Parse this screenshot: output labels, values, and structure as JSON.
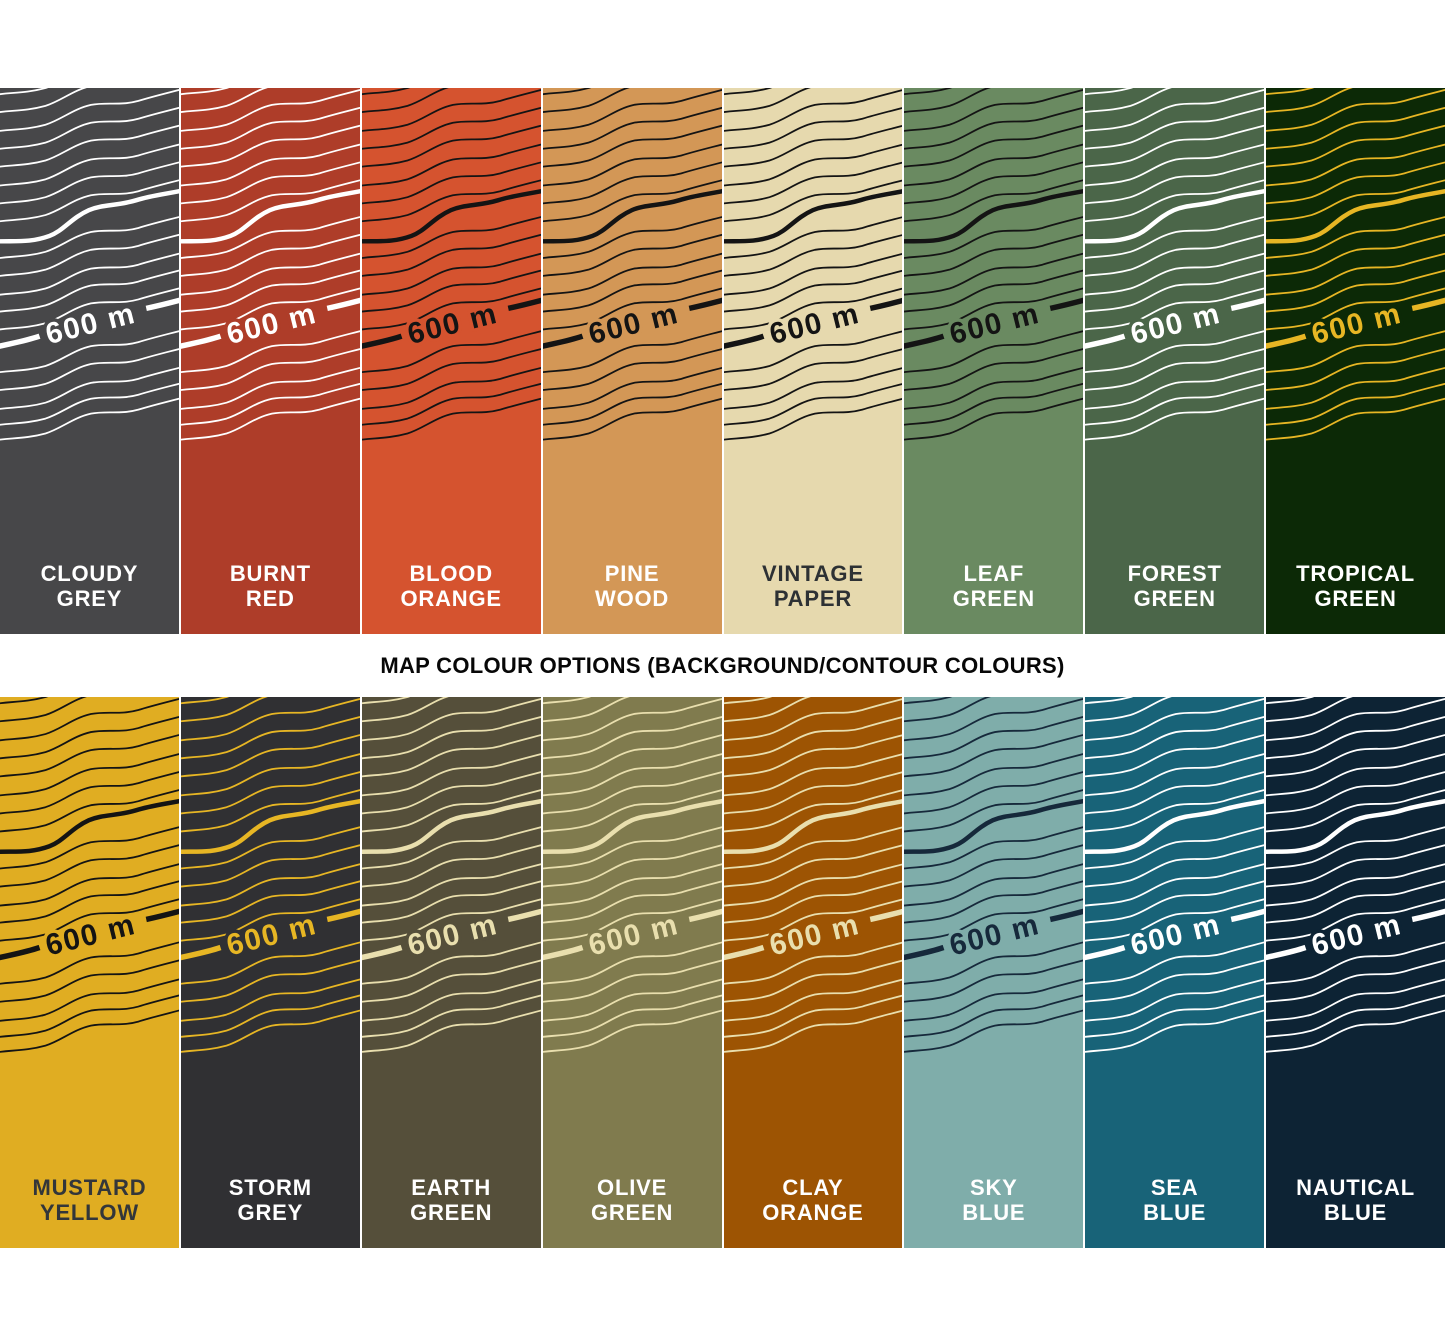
{
  "title": "MAP COLOUR OPTIONS (BACKGROUND/CONTOUR COLOURS)",
  "contour_label": "600 m",
  "rows": [
    {
      "swatches": [
        {
          "name": "CLOUDY\nGREY",
          "bg": "#474749",
          "contour": "#ffffff",
          "label_color": "#ffffff"
        },
        {
          "name": "BURNT\nRED",
          "bg": "#ae3d29",
          "contour": "#ffffff",
          "label_color": "#ffffff"
        },
        {
          "name": "BLOOD\nORANGE",
          "bg": "#d5532f",
          "contour": "#141414",
          "label_color": "#ffffff"
        },
        {
          "name": "PINE\nWOOD",
          "bg": "#d39756",
          "contour": "#141414",
          "label_color": "#ffffff"
        },
        {
          "name": "VINTAGE\nPAPER",
          "bg": "#e6d9ae",
          "contour": "#141414",
          "label_color": "#2d3134"
        },
        {
          "name": "LEAF\nGREEN",
          "bg": "#6a8a61",
          "contour": "#141414",
          "label_color": "#ffffff"
        },
        {
          "name": "FOREST\nGREEN",
          "bg": "#4b6649",
          "contour": "#ffffff",
          "label_color": "#ffffff"
        },
        {
          "name": "TROPICAL\nGREEN",
          "bg": "#0c2906",
          "contour": "#e7b624",
          "label_color": "#ffffff"
        }
      ]
    },
    {
      "swatches": [
        {
          "name": "MUSTARD\nYELLOW",
          "bg": "#e0ad22",
          "contour": "#141414",
          "label_color": "#33363a"
        },
        {
          "name": "STORM\nGREY",
          "bg": "#303033",
          "contour": "#e7b624",
          "label_color": "#ffffff"
        },
        {
          "name": "EARTH\nGREEN",
          "bg": "#554f3a",
          "contour": "#e9dfae",
          "label_color": "#ffffff"
        },
        {
          "name": "OLIVE\nGREEN",
          "bg": "#807b4e",
          "contour": "#e9dfae",
          "label_color": "#ffffff"
        },
        {
          "name": "CLAY\nORANGE",
          "bg": "#9d5403",
          "contour": "#e9dfae",
          "label_color": "#ffffff"
        },
        {
          "name": "SKY\nBLUE",
          "bg": "#7fadaa",
          "contour": "#16293b",
          "label_color": "#ffffff"
        },
        {
          "name": "SEA\nBLUE",
          "bg": "#186378",
          "contour": "#ffffff",
          "label_color": "#ffffff"
        },
        {
          "name": "NAUTICAL\nBLUE",
          "bg": "#0d2334",
          "contour": "#ffffff",
          "label_color": "#ffffff"
        }
      ]
    }
  ]
}
